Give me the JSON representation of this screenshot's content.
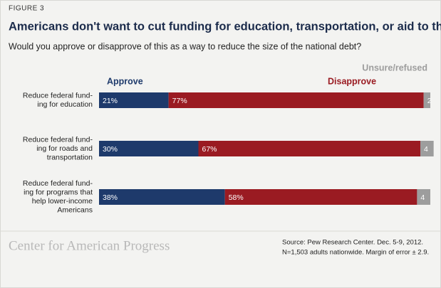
{
  "chart_data": {
    "type": "stacked-bar-horizontal",
    "figure_label": "FIGURE 3",
    "title": "Americans don't want to cut funding for education, transportation, or aid to the poor",
    "subtitle": "Would you approve or disapprove of this as a way to reduce the size of the national debt?",
    "categories": [
      [
        "Reduce federal fund-",
        "ing for education"
      ],
      [
        "Reduce federal fund-",
        "ing for roads and",
        "transportation"
      ],
      [
        "Reduce federal fund-",
        "ing for programs that",
        "help lower-income",
        "Americans"
      ]
    ],
    "xlim": [
      0,
      100
    ],
    "series": [
      {
        "name": "Approve",
        "color": "#1e3a6b",
        "values": [
          21,
          30,
          38
        ],
        "value_labels": [
          "21%",
          "30%",
          "38%"
        ]
      },
      {
        "name": "Disapprove",
        "color": "#9a1b22",
        "values": [
          77,
          67,
          58
        ],
        "value_labels": [
          "77%",
          "67%",
          "58%"
        ]
      },
      {
        "name": "Unsure/refused",
        "color": "#9d9d9d",
        "values": [
          2,
          4,
          4
        ]
      }
    ],
    "source": [
      "Source: Pew Research Center. Dec. 5-9, 2012.",
      "N=1,503 adults nationwide. Margin of error ± 2.9."
    ],
    "logo": "Center for American Progress"
  }
}
